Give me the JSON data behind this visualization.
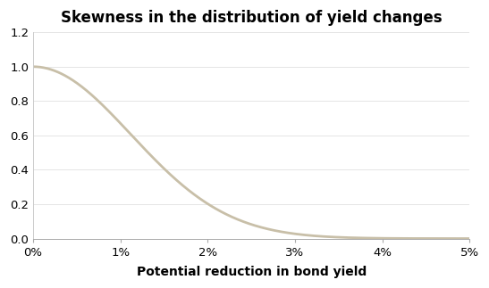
{
  "title": "Skewness in the distribution of yield changes",
  "xlabel": "Potential reduction in bond yield",
  "ylabel": "",
  "line_color": "#c8bfa8",
  "line_width": 2.0,
  "xlim": [
    0.0,
    0.05
  ],
  "ylim": [
    0.0,
    1.2
  ],
  "yticks": [
    0.0,
    0.2,
    0.4,
    0.6,
    0.8,
    1.0,
    1.2
  ],
  "xticks": [
    0.0,
    0.01,
    0.02,
    0.03,
    0.04,
    0.05
  ],
  "xtick_labels": [
    "0%",
    "1%",
    "2%",
    "3%",
    "4%",
    "5%"
  ],
  "title_fontsize": 12,
  "label_fontsize": 10,
  "tick_fontsize": 9.5,
  "background_color": "#ffffff",
  "k": 4000.0,
  "alpha": 2.0
}
